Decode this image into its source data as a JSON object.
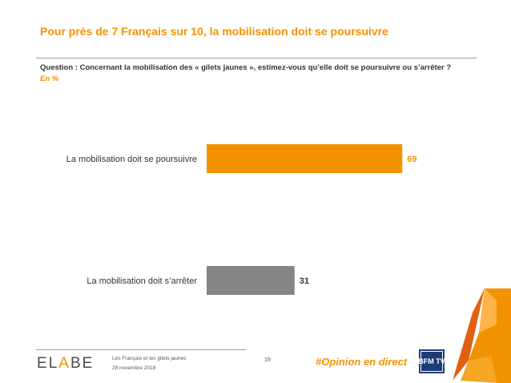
{
  "title": "Pour près de 7 Français sur 10, la mobilisation doit se poursuivre",
  "question": "Question : Concernant la mobilisation des « gilets jaunes », estimez-vous qu’elle doit se poursuivre ou s’arrêter ?",
  "unit": "En  %",
  "chart_data": {
    "type": "bar",
    "orientation": "horizontal",
    "categories": [
      "La mobilisation doit se poursuivre",
      "La mobilisation doit s’arrêter"
    ],
    "values": [
      69,
      31
    ],
    "colors": [
      "#f39200",
      "#858585"
    ],
    "value_label_colors": [
      "#f39200",
      "#333333"
    ],
    "xlim": [
      0,
      100
    ],
    "grid": false
  },
  "footer": {
    "logo": "ELABE",
    "study": "Les Français et les gilets jaunes",
    "date": "28 novembre 2018",
    "page": "19",
    "hashtag": "#Opinion en direct",
    "partner_logo_text": "BFM TV"
  },
  "accent_color": "#f39200"
}
